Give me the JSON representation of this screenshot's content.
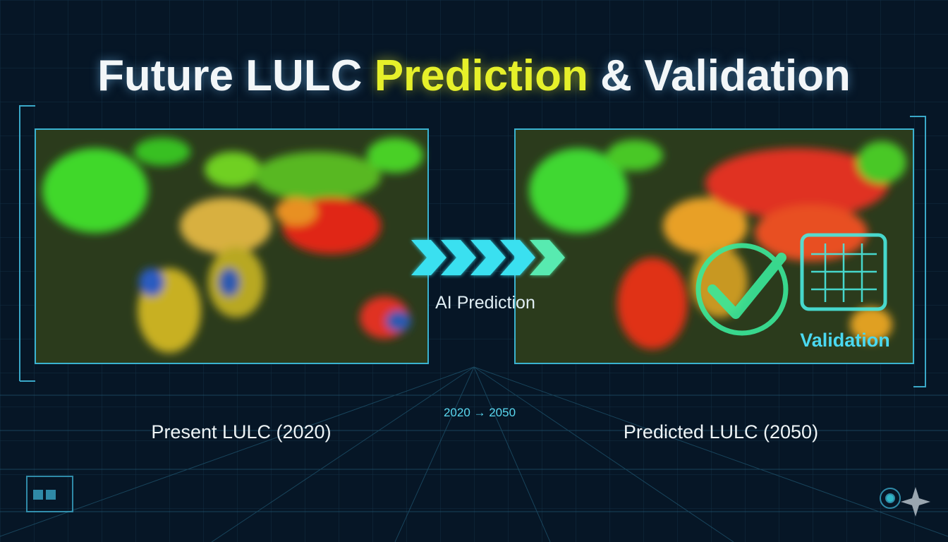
{
  "header": {
    "title": {
      "part1": "Future LULC",
      "highlight": "Prediction",
      "part2": "& Validation"
    }
  },
  "panels": [
    {
      "label": "Present LULC (2020)"
    },
    {
      "label": "Predicted LULC (2050)",
      "badge": "Validation"
    }
  ],
  "arrow": {
    "label": "AI Prediction"
  },
  "timeline": "2020 → 2050"
}
